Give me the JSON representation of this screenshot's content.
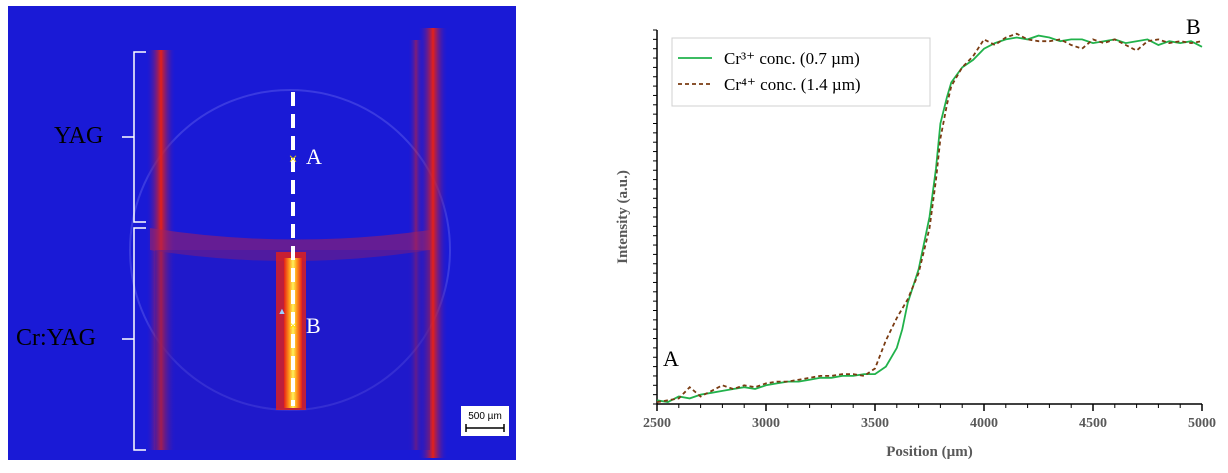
{
  "image_panel": {
    "labels": {
      "yag": "YAG",
      "cryag": "Cr:YAG",
      "point_a": "A",
      "point_b": "B",
      "scale_bar": "500 µm"
    },
    "colors": {
      "background": "#1a1ad6",
      "glow": "#e52018",
      "hot": "#fff25a",
      "marker": "#ffe000"
    }
  },
  "chart_data": {
    "type": "line",
    "xlabel": "Position (µm)",
    "ylabel": "Intensity (a.u.)",
    "xlim": [
      2500,
      5000
    ],
    "ylim": [
      0,
      1
    ],
    "xticks": [
      2500,
      3000,
      3500,
      4000,
      4500,
      5000
    ],
    "endpoint_labels": {
      "start": "A",
      "end": "B"
    },
    "legend_position": "top-left",
    "grid": false,
    "series": [
      {
        "name": "Cr³⁺ conc. (0.7 µm)",
        "style": "solid",
        "color": "#21b24b",
        "x": [
          2500,
          2550,
          2600,
          2650,
          2700,
          2750,
          2800,
          2850,
          2900,
          2950,
          3000,
          3050,
          3100,
          3150,
          3200,
          3250,
          3300,
          3350,
          3400,
          3450,
          3500,
          3550,
          3600,
          3625,
          3650,
          3700,
          3750,
          3780,
          3800,
          3830,
          3850,
          3900,
          3950,
          4000,
          4050,
          4100,
          4150,
          4200,
          4250,
          4300,
          4350,
          4400,
          4450,
          4500,
          4550,
          4600,
          4650,
          4700,
          4750,
          4800,
          4850,
          4900,
          4950,
          5000
        ],
        "y": [
          0.01,
          0.005,
          0.02,
          0.015,
          0.025,
          0.03,
          0.035,
          0.04,
          0.045,
          0.04,
          0.05,
          0.055,
          0.06,
          0.06,
          0.065,
          0.07,
          0.07,
          0.075,
          0.075,
          0.08,
          0.08,
          0.1,
          0.15,
          0.2,
          0.27,
          0.36,
          0.5,
          0.63,
          0.75,
          0.82,
          0.86,
          0.9,
          0.92,
          0.95,
          0.965,
          0.975,
          0.98,
          0.975,
          0.985,
          0.98,
          0.97,
          0.975,
          0.975,
          0.965,
          0.97,
          0.975,
          0.965,
          0.97,
          0.975,
          0.96,
          0.97,
          0.965,
          0.97,
          0.955
        ]
      },
      {
        "name": "Cr⁴⁺ conc. (1.4 µm)",
        "style": "dashed",
        "color": "#7a3b12",
        "x": [
          2500,
          2550,
          2600,
          2650,
          2700,
          2750,
          2800,
          2850,
          2900,
          2950,
          3000,
          3050,
          3100,
          3150,
          3200,
          3250,
          3300,
          3350,
          3400,
          3450,
          3500,
          3550,
          3600,
          3650,
          3700,
          3750,
          3780,
          3800,
          3830,
          3850,
          3900,
          3950,
          4000,
          4050,
          4100,
          4150,
          4200,
          4250,
          4300,
          4350,
          4400,
          4450,
          4500,
          4550,
          4600,
          4650,
          4700,
          4750,
          4800,
          4850,
          4900,
          4950,
          5000
        ],
        "y": [
          0.005,
          0.01,
          0.015,
          0.045,
          0.02,
          0.035,
          0.05,
          0.04,
          0.05,
          0.045,
          0.055,
          0.06,
          0.06,
          0.065,
          0.07,
          0.075,
          0.075,
          0.08,
          0.08,
          0.075,
          0.095,
          0.17,
          0.23,
          0.28,
          0.35,
          0.47,
          0.6,
          0.71,
          0.8,
          0.85,
          0.9,
          0.93,
          0.975,
          0.96,
          0.98,
          0.99,
          0.975,
          0.97,
          0.97,
          0.975,
          0.96,
          0.95,
          0.975,
          0.965,
          0.975,
          0.96,
          0.945,
          0.97,
          0.975,
          0.965,
          0.97,
          0.965,
          0.97
        ]
      }
    ]
  }
}
